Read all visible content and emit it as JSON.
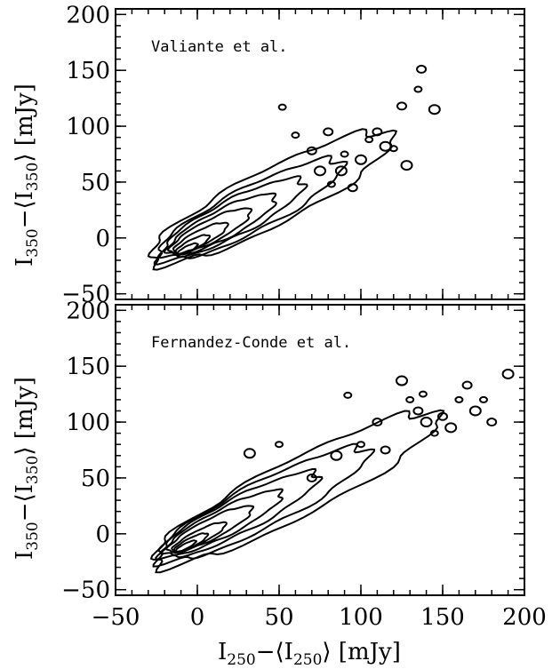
{
  "chart_data": [
    {
      "type": "contour",
      "annotation": "Valiante et al.",
      "ylabel": {
        "main": "I",
        "sub": "350",
        "mid": "−⟨I",
        "sub2": "350",
        "tail": "⟩ [mJy]"
      },
      "xlim": [
        -50,
        200
      ],
      "ylim": [
        -55,
        205
      ],
      "xticks": [
        -50,
        0,
        50,
        100,
        150,
        200
      ],
      "yticks": [
        -50,
        0,
        50,
        100,
        150,
        200
      ],
      "ridge": {
        "x": [
          -10,
          0,
          20,
          40,
          60,
          80,
          100,
          120,
          140
        ],
        "y": [
          -15,
          -2,
          20,
          38,
          52,
          65,
          78,
          92,
          110
        ]
      },
      "contour_levels": [
        {
          "cx": -6,
          "cy": -10,
          "rx": 6,
          "ry": 6
        },
        {
          "cx": -3,
          "cy": -6,
          "rx": 10,
          "ry": 10
        },
        {
          "cx": 2,
          "cy": 0,
          "rx": 16,
          "ry": 15
        },
        {
          "cx": 8,
          "cy": 6,
          "rx": 24,
          "ry": 22
        },
        {
          "cx": 15,
          "cy": 12,
          "rx": 32,
          "ry": 29
        },
        {
          "cx": 22,
          "cy": 18,
          "rx": 42,
          "ry": 36
        },
        {
          "cx": 32,
          "cy": 25,
          "rx": 55,
          "ry": 44
        },
        {
          "cx": 45,
          "cy": 36,
          "rx": 72,
          "ry": 55
        }
      ],
      "islands": [
        {
          "x": 60,
          "y": 92
        },
        {
          "x": 80,
          "y": 95
        },
        {
          "x": 88,
          "y": 60
        },
        {
          "x": 90,
          "y": 75
        },
        {
          "x": 95,
          "y": 45
        },
        {
          "x": 100,
          "y": 70
        },
        {
          "x": 105,
          "y": 88
        },
        {
          "x": 110,
          "y": 95
        },
        {
          "x": 115,
          "y": 82
        },
        {
          "x": 120,
          "y": 80
        },
        {
          "x": 125,
          "y": 118
        },
        {
          "x": 128,
          "y": 65
        },
        {
          "x": 135,
          "y": 133
        },
        {
          "x": 137,
          "y": 151
        },
        {
          "x": 145,
          "y": 115
        },
        {
          "x": 52,
          "y": 117
        },
        {
          "x": 70,
          "y": 78
        },
        {
          "x": 75,
          "y": 60
        },
        {
          "x": 82,
          "y": 48
        }
      ]
    },
    {
      "type": "contour",
      "annotation": "Fernandez-Conde et al.",
      "ylabel": {
        "main": "I",
        "sub": "350",
        "mid": "−⟨I",
        "sub2": "350",
        "tail": "⟩ [mJy]"
      },
      "xlabel": {
        "main": "I",
        "sub": "250",
        "mid": "−⟨I",
        "sub2": "250",
        "tail": "⟩ [mJy]"
      },
      "xlim": [
        -50,
        200
      ],
      "ylim": [
        -55,
        205
      ],
      "xticks": [
        -50,
        0,
        50,
        100,
        150,
        200
      ],
      "yticks": [
        -50,
        0,
        50,
        100,
        150,
        200
      ],
      "contour_levels": [
        {
          "cx": -7,
          "cy": -11,
          "rx": 6,
          "ry": 5
        },
        {
          "cx": -4,
          "cy": -8,
          "rx": 10,
          "ry": 9
        },
        {
          "cx": 1,
          "cy": -3,
          "rx": 16,
          "ry": 13
        },
        {
          "cx": 8,
          "cy": 4,
          "rx": 25,
          "ry": 20
        },
        {
          "cx": 16,
          "cy": 10,
          "rx": 35,
          "ry": 27
        },
        {
          "cx": 26,
          "cy": 17,
          "rx": 47,
          "ry": 35
        },
        {
          "cx": 40,
          "cy": 26,
          "rx": 63,
          "ry": 45
        },
        {
          "cx": 60,
          "cy": 40,
          "rx": 85,
          "ry": 56
        }
      ],
      "islands": [
        {
          "x": 92,
          "y": 124
        },
        {
          "x": 110,
          "y": 100
        },
        {
          "x": 125,
          "y": 137
        },
        {
          "x": 130,
          "y": 120
        },
        {
          "x": 135,
          "y": 110
        },
        {
          "x": 140,
          "y": 100
        },
        {
          "x": 145,
          "y": 90
        },
        {
          "x": 150,
          "y": 105
        },
        {
          "x": 155,
          "y": 95
        },
        {
          "x": 160,
          "y": 120
        },
        {
          "x": 165,
          "y": 133
        },
        {
          "x": 170,
          "y": 110
        },
        {
          "x": 175,
          "y": 120
        },
        {
          "x": 180,
          "y": 100
        },
        {
          "x": 190,
          "y": 143
        },
        {
          "x": 50,
          "y": 80
        },
        {
          "x": 70,
          "y": 50
        },
        {
          "x": 85,
          "y": 70
        },
        {
          "x": 100,
          "y": 80
        },
        {
          "x": 115,
          "y": 75
        },
        {
          "x": 32,
          "y": 72
        },
        {
          "x": 138,
          "y": 125
        }
      ]
    }
  ]
}
